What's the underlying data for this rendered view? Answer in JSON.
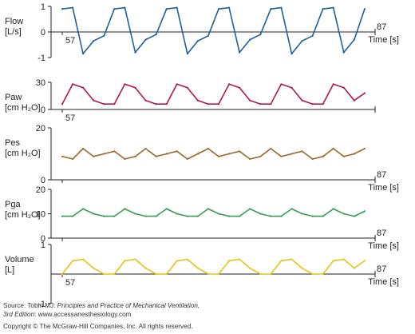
{
  "chart_data": {
    "type": "line",
    "panels": [
      {
        "id": "flow",
        "ylabel": [
          "Flow",
          "[L/s]"
        ],
        "yticks": [
          1,
          0,
          -1
        ],
        "ylim": [
          -1,
          1
        ],
        "xstart_label": "57",
        "xend_label": "87",
        "xaxis_label": "Time [s]",
        "color": "#1f5fa0",
        "series": {
          "x": [
            57,
            58,
            59,
            60,
            61,
            62,
            63,
            64,
            65,
            66,
            67,
            68,
            69,
            70,
            71,
            72,
            73,
            74,
            75,
            76,
            77,
            78,
            79,
            80,
            81,
            82,
            83,
            84,
            85,
            86
          ],
          "y": [
            0.9,
            0.95,
            -0.85,
            -0.35,
            -0.15,
            0.9,
            0.95,
            -0.8,
            -0.3,
            -0.1,
            0.9,
            0.95,
            -0.85,
            -0.35,
            -0.15,
            0.9,
            0.95,
            -0.8,
            -0.3,
            -0.1,
            0.9,
            0.95,
            -0.85,
            -0.35,
            -0.15,
            0.9,
            0.95,
            -0.8,
            -0.3,
            0.9
          ]
        }
      },
      {
        "id": "paw",
        "ylabel": [
          "Paw",
          "[cm H₂O]"
        ],
        "yticks": [
          30,
          0
        ],
        "ylim": [
          0,
          30
        ],
        "xstart_label": "57",
        "xend_label": "",
        "xaxis_label": "",
        "color": "#b01848",
        "series": {
          "x": [
            57,
            58,
            59,
            60,
            61,
            62,
            63,
            64,
            65,
            66,
            67,
            68,
            69,
            70,
            71,
            72,
            73,
            74,
            75,
            76,
            77,
            78,
            79,
            80,
            81,
            82,
            83,
            84,
            85,
            86
          ],
          "y": [
            6,
            28,
            24,
            10,
            6,
            6,
            28,
            24,
            10,
            6,
            6,
            28,
            24,
            10,
            6,
            6,
            28,
            24,
            10,
            6,
            6,
            28,
            24,
            10,
            6,
            6,
            28,
            24,
            10,
            18
          ]
        }
      },
      {
        "id": "pes",
        "ylabel": [
          "Pes",
          "[cm H₂O]"
        ],
        "yticks": [
          20,
          0
        ],
        "ylim": [
          0,
          20
        ],
        "xstart_label": "",
        "xend_label": "87",
        "xaxis_label": "Time [s]",
        "color": "#9c6a30",
        "series": {
          "x": [
            57,
            58,
            59,
            60,
            61,
            62,
            63,
            64,
            65,
            66,
            67,
            68,
            69,
            70,
            71,
            72,
            73,
            74,
            75,
            76,
            77,
            78,
            79,
            80,
            81,
            82,
            83,
            84,
            85,
            86
          ],
          "y": [
            9,
            8,
            12,
            9,
            10,
            11,
            8,
            9,
            12,
            9,
            10,
            11,
            8,
            10,
            12,
            9,
            10,
            11,
            8,
            9,
            12,
            9,
            10,
            11,
            8,
            9,
            12,
            9,
            10,
            12
          ]
        }
      },
      {
        "id": "pga",
        "ylabel": [
          "Pga",
          "[cm H₂O]"
        ],
        "yticks": [
          20,
          10,
          0
        ],
        "ylim": [
          0,
          20
        ],
        "xstart_label": "",
        "xend_label": "87",
        "xaxis_label": "Time [s]",
        "color": "#3a9a58",
        "series": {
          "x": [
            57,
            58,
            59,
            60,
            61,
            62,
            63,
            64,
            65,
            66,
            67,
            68,
            69,
            70,
            71,
            72,
            73,
            74,
            75,
            76,
            77,
            78,
            79,
            80,
            81,
            82,
            83,
            84,
            85,
            86
          ],
          "y": [
            9,
            9,
            12,
            10,
            9,
            9,
            12,
            10,
            9,
            9,
            12,
            10,
            9,
            9,
            12,
            10,
            9,
            9,
            12,
            10,
            9,
            9,
            12,
            10,
            9,
            9,
            12,
            10,
            9,
            11
          ]
        }
      },
      {
        "id": "volume",
        "ylabel": [
          "Volume",
          "[L]"
        ],
        "yticks": [
          1,
          -1
        ],
        "ylim": [
          -1,
          1
        ],
        "xstart_label": "57",
        "xend_label": "87",
        "xaxis_label": "Time [s]",
        "color": "#e6c419",
        "series": {
          "x": [
            57,
            58,
            59,
            60,
            61,
            62,
            63,
            64,
            65,
            66,
            67,
            68,
            69,
            70,
            71,
            72,
            73,
            74,
            75,
            76,
            77,
            78,
            79,
            80,
            81,
            82,
            83,
            84,
            85,
            86
          ],
          "y": [
            0,
            0.45,
            0.5,
            0.2,
            0,
            0,
            0.45,
            0.5,
            0.2,
            0,
            0,
            0.45,
            0.5,
            0.2,
            0,
            0,
            0.45,
            0.5,
            0.2,
            0,
            0,
            0.45,
            0.5,
            0.2,
            0,
            0,
            0.45,
            0.5,
            0.2,
            0.45
          ]
        }
      }
    ]
  },
  "footer": {
    "source_prefix": "Source: Tobin MJ: ",
    "source_title": "Principles and Practice of Mechanical Ventilation,",
    "source_edition": "3rd Edition",
    "source_site": ": www.accessanesthesiology.com",
    "copyright": "Copyright © The McGraw-Hill Companies, Inc. All rights reserved."
  }
}
